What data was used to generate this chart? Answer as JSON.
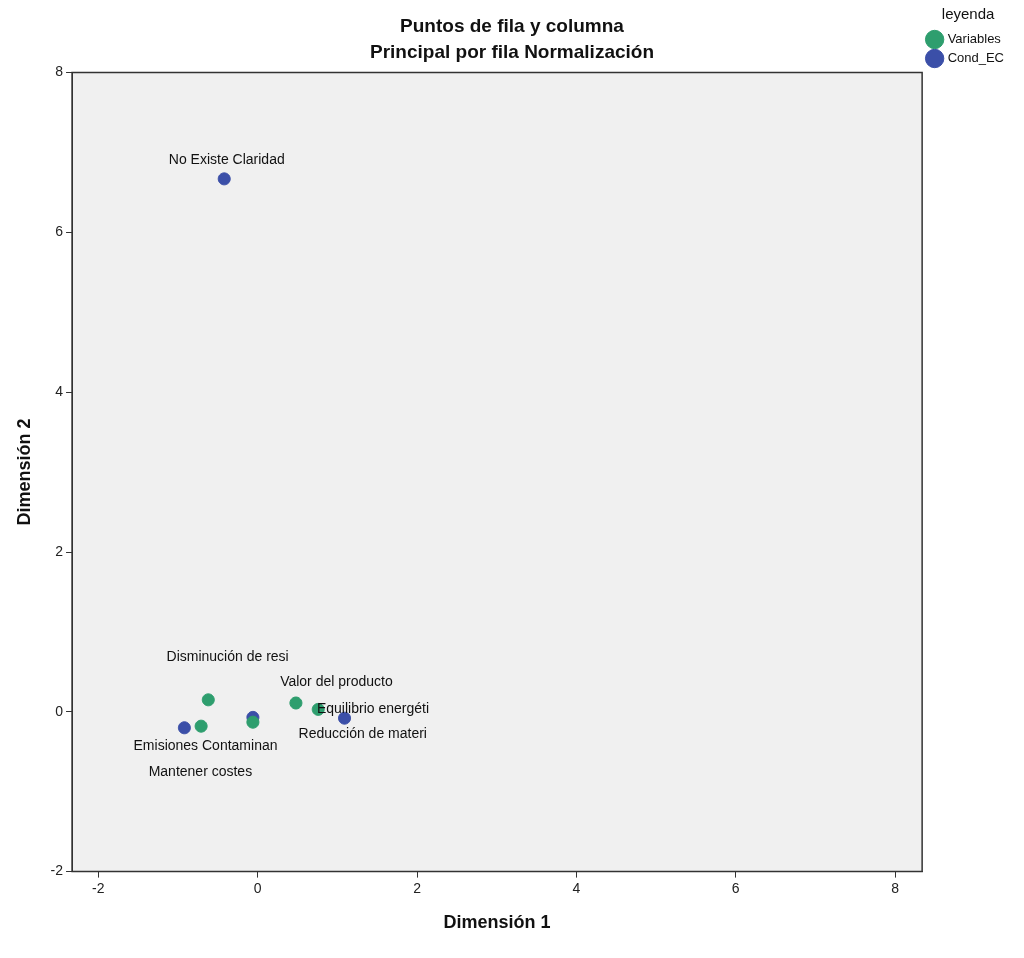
{
  "chart_data": {
    "type": "scatter",
    "title": "Puntos de fila y columna",
    "subtitle": "Principal por fila Normalización",
    "xlabel": "Dimensión 1",
    "ylabel": "Dimensión 2",
    "legend_title": "leyenda",
    "series": [
      {
        "name": "Cond_EC",
        "color": "#3b4fa8",
        "x": [
          -0.42,
          -0.92,
          -0.06,
          1.09
        ],
        "values": [
          6.67,
          -0.2,
          -0.07,
          -0.08
        ]
      },
      {
        "name": "Variables",
        "color": "#2e9e6e",
        "x": [
          -0.62,
          -0.71,
          -0.06,
          0.48,
          0.76
        ],
        "values": [
          0.15,
          -0.18,
          -0.13,
          0.11,
          0.03
        ]
      }
    ],
    "annotations": [
      "No Existe Claridad",
      "Disminución de resi",
      "Valor del producto",
      "Equilibrio energéti",
      "Reducción de materi",
      "Emisiones Contaminan",
      "Mantener costes"
    ],
    "xlim": [
      -2.33,
      8.34
    ],
    "xticks": [
      -2,
      0,
      2,
      4,
      6,
      8
    ],
    "ylim": [
      -2,
      8
    ],
    "yticks": [
      -2,
      0,
      2,
      4,
      6,
      8
    ],
    "legend": "top right",
    "marker": "circle"
  }
}
